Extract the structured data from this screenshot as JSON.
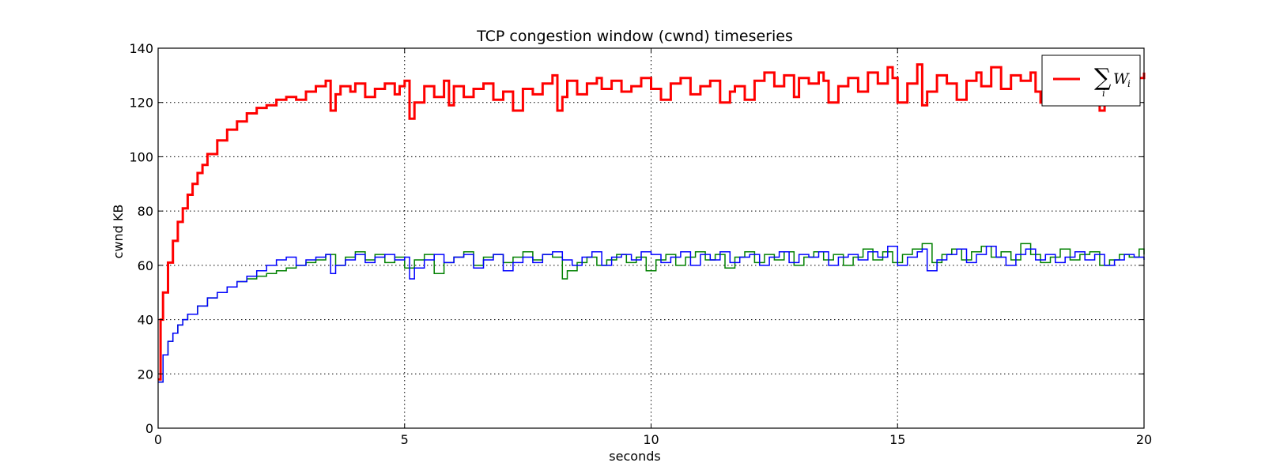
{
  "chart_data": {
    "type": "line",
    "step": true,
    "title": "TCP congestion window (cwnd) timeseries",
    "xlabel": "seconds",
    "ylabel": "cwnd KB",
    "xlim": [
      0,
      20
    ],
    "ylim": [
      0,
      140
    ],
    "xticks": [
      0,
      5,
      10,
      15,
      20
    ],
    "yticks": [
      0,
      20,
      40,
      60,
      80,
      100,
      120,
      140
    ],
    "grid": true,
    "legend": {
      "position": "top-right",
      "entries": [
        {
          "series": "sum",
          "label_symbol": "∑",
          "label_subscript": "i",
          "label_var": "W",
          "label_var_subscript": "i"
        }
      ]
    },
    "series": [
      {
        "key": "sum",
        "color": "#ff0000",
        "linewidth": 3,
        "x": [
          0,
          0.05,
          0.1,
          0.2,
          0.3,
          0.4,
          0.5,
          0.6,
          0.7,
          0.8,
          0.9,
          1.0,
          1.2,
          1.4,
          1.6,
          1.8,
          2.0,
          2.2,
          2.4,
          2.6,
          2.8,
          3.0,
          3.2,
          3.4,
          3.5,
          3.6,
          3.7,
          3.9,
          4.0,
          4.2,
          4.4,
          4.6,
          4.8,
          4.9,
          5.0,
          5.1,
          5.2,
          5.4,
          5.6,
          5.8,
          5.9,
          6.0,
          6.2,
          6.4,
          6.6,
          6.8,
          7.0,
          7.2,
          7.4,
          7.6,
          7.8,
          8.0,
          8.1,
          8.2,
          8.3,
          8.5,
          8.7,
          8.9,
          9.0,
          9.2,
          9.4,
          9.6,
          9.8,
          10.0,
          10.2,
          10.4,
          10.6,
          10.8,
          11.0,
          11.2,
          11.4,
          11.6,
          11.7,
          11.9,
          12.1,
          12.3,
          12.5,
          12.7,
          12.9,
          13.0,
          13.2,
          13.4,
          13.5,
          13.6,
          13.8,
          14.0,
          14.2,
          14.4,
          14.6,
          14.8,
          14.9,
          15.0,
          15.2,
          15.4,
          15.5,
          15.6,
          15.8,
          16.0,
          16.2,
          16.4,
          16.6,
          16.7,
          16.9,
          17.1,
          17.3,
          17.5,
          17.7,
          17.8,
          17.9,
          18.1,
          18.3,
          18.5,
          18.7,
          18.9,
          19.1,
          19.2,
          19.4,
          19.6,
          19.8,
          20.0
        ],
        "values": [
          18,
          40,
          50,
          61,
          69,
          76,
          81,
          86,
          90,
          94,
          97,
          101,
          106,
          110,
          113,
          116,
          118,
          119,
          121,
          122,
          121,
          124,
          126,
          128,
          117,
          123,
          126,
          124,
          127,
          122,
          125,
          127,
          123,
          126,
          128,
          114,
          120,
          126,
          122,
          128,
          119,
          126,
          122,
          125,
          127,
          121,
          124,
          117,
          125,
          123,
          127,
          130,
          117,
          122,
          128,
          123,
          127,
          129,
          125,
          128,
          124,
          126,
          129,
          125,
          121,
          127,
          129,
          123,
          126,
          128,
          120,
          124,
          126,
          121,
          128,
          131,
          126,
          130,
          122,
          129,
          127,
          131,
          128,
          120,
          126,
          129,
          124,
          131,
          127,
          133,
          129,
          120,
          127,
          134,
          119,
          124,
          130,
          127,
          121,
          128,
          131,
          126,
          133,
          125,
          130,
          128,
          131,
          124,
          120,
          130,
          125,
          132,
          127,
          130,
          117,
          124,
          127,
          132,
          129,
          131
        ]
      },
      {
        "key": "flow1",
        "color": "#0000ff",
        "linewidth": 1.5,
        "x": [
          0,
          0.1,
          0.2,
          0.3,
          0.4,
          0.5,
          0.6,
          0.8,
          1.0,
          1.2,
          1.4,
          1.6,
          1.8,
          2.0,
          2.2,
          2.4,
          2.6,
          2.8,
          3.0,
          3.2,
          3.4,
          3.5,
          3.6,
          3.8,
          4.0,
          4.2,
          4.4,
          4.6,
          4.8,
          5.0,
          5.1,
          5.2,
          5.4,
          5.6,
          5.8,
          6.0,
          6.2,
          6.4,
          6.6,
          6.8,
          7.0,
          7.2,
          7.4,
          7.6,
          7.8,
          8.0,
          8.2,
          8.4,
          8.6,
          8.8,
          9.0,
          9.2,
          9.4,
          9.6,
          9.8,
          10.0,
          10.2,
          10.4,
          10.6,
          10.8,
          11.0,
          11.2,
          11.4,
          11.6,
          11.8,
          12.0,
          12.2,
          12.4,
          12.6,
          12.8,
          13.0,
          13.2,
          13.4,
          13.6,
          13.8,
          14.0,
          14.2,
          14.4,
          14.6,
          14.8,
          15.0,
          15.2,
          15.4,
          15.5,
          15.6,
          15.8,
          16.0,
          16.2,
          16.4,
          16.6,
          16.8,
          17.0,
          17.2,
          17.4,
          17.6,
          17.8,
          18.0,
          18.2,
          18.4,
          18.6,
          18.8,
          19.0,
          19.2,
          19.4,
          19.6,
          19.8,
          20.0
        ],
        "values": [
          17,
          27,
          32,
          35,
          38,
          40,
          42,
          45,
          48,
          50,
          52,
          54,
          56,
          58,
          60,
          62,
          63,
          60,
          62,
          63,
          64,
          57,
          60,
          62,
          64,
          61,
          63,
          64,
          62,
          63,
          55,
          59,
          62,
          64,
          61,
          63,
          64,
          59,
          62,
          64,
          58,
          61,
          63,
          61,
          64,
          65,
          62,
          60,
          63,
          65,
          60,
          63,
          64,
          62,
          65,
          64,
          61,
          63,
          65,
          60,
          64,
          62,
          65,
          61,
          63,
          64,
          60,
          63,
          65,
          61,
          64,
          63,
          65,
          60,
          63,
          64,
          62,
          65,
          63,
          67,
          60,
          63,
          65,
          66,
          58,
          62,
          64,
          66,
          61,
          64,
          67,
          63,
          60,
          64,
          66,
          62,
          64,
          61,
          63,
          65,
          62,
          64,
          60,
          62,
          64,
          63,
          62
        ]
      },
      {
        "key": "flow2",
        "color": "#008000",
        "linewidth": 1.5,
        "x": [
          0,
          0.1,
          0.2,
          0.3,
          0.4,
          0.5,
          0.6,
          0.8,
          1.0,
          1.2,
          1.4,
          1.6,
          1.8,
          2.0,
          2.2,
          2.4,
          2.6,
          2.8,
          3.0,
          3.2,
          3.4,
          3.6,
          3.8,
          4.0,
          4.2,
          4.4,
          4.6,
          4.8,
          5.0,
          5.2,
          5.4,
          5.6,
          5.8,
          6.0,
          6.2,
          6.4,
          6.6,
          6.8,
          7.0,
          7.2,
          7.4,
          7.6,
          7.8,
          8.0,
          8.2,
          8.3,
          8.5,
          8.7,
          8.9,
          9.1,
          9.3,
          9.5,
          9.7,
          9.9,
          10.1,
          10.3,
          10.5,
          10.7,
          10.9,
          11.1,
          11.3,
          11.5,
          11.7,
          11.9,
          12.1,
          12.3,
          12.5,
          12.7,
          12.9,
          13.1,
          13.3,
          13.5,
          13.7,
          13.9,
          14.1,
          14.3,
          14.5,
          14.7,
          14.9,
          15.1,
          15.3,
          15.5,
          15.7,
          15.9,
          16.1,
          16.3,
          16.5,
          16.7,
          16.9,
          17.1,
          17.3,
          17.5,
          17.7,
          17.9,
          18.1,
          18.3,
          18.5,
          18.7,
          18.9,
          19.1,
          19.3,
          19.5,
          19.7,
          19.9,
          20.0
        ],
        "values": [
          17,
          27,
          32,
          35,
          38,
          40,
          42,
          45,
          48,
          50,
          52,
          54,
          55,
          56,
          57,
          58,
          59,
          60,
          61,
          62,
          64,
          60,
          63,
          65,
          62,
          64,
          61,
          63,
          59,
          62,
          64,
          57,
          61,
          63,
          65,
          60,
          63,
          64,
          61,
          63,
          65,
          62,
          64,
          63,
          55,
          58,
          61,
          63,
          60,
          62,
          64,
          61,
          63,
          58,
          62,
          64,
          60,
          63,
          65,
          62,
          64,
          59,
          63,
          65,
          61,
          64,
          62,
          65,
          60,
          63,
          65,
          62,
          64,
          60,
          63,
          66,
          62,
          65,
          61,
          64,
          66,
          68,
          61,
          64,
          66,
          62,
          65,
          67,
          63,
          65,
          62,
          68,
          64,
          61,
          63,
          66,
          62,
          64,
          65,
          60,
          62,
          64,
          63,
          66,
          64
        ]
      }
    ]
  }
}
